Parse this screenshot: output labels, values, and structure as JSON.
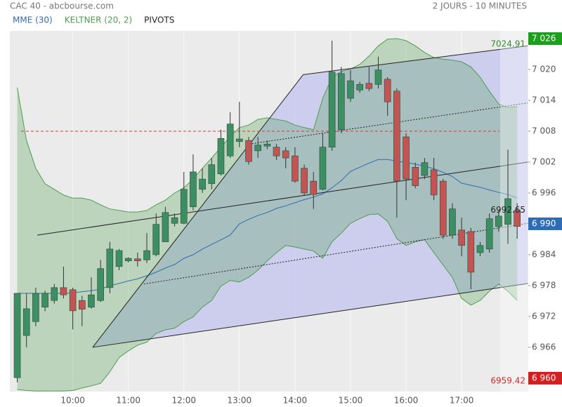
{
  "header": {
    "title": "CAC 40 - abcbourse.com",
    "period": "2 JOURS - 10 MINUTES"
  },
  "chart_data": {
    "type": "candlestick",
    "x": [
      540,
      550,
      560,
      570,
      580,
      590,
      600,
      610,
      620,
      630,
      640,
      650,
      660,
      670,
      680,
      690,
      700,
      710,
      720,
      730,
      740,
      750,
      760,
      770,
      780,
      790,
      800,
      810,
      820,
      830,
      840,
      850,
      860,
      870,
      880,
      890,
      900,
      910,
      920,
      930,
      940,
      950,
      960,
      970,
      980,
      990,
      1000,
      1010,
      1020,
      1030,
      1040,
      1050,
      1060,
      1070,
      1080
    ],
    "open": [
      6960.1,
      6968.3,
      6971.0,
      6973.8,
      6975.1,
      6977.6,
      6977.2,
      6975.1,
      6973.8,
      6975.1,
      6977.6,
      6981.7,
      6982.8,
      6983.2,
      6983.0,
      6984.0,
      6986.5,
      6990.1,
      6990.1,
      6993.3,
      6996.7,
      6997.8,
      6999.7,
      7003.2,
      7006.0,
      7006.2,
      7004.2,
      7005.1,
      7004.9,
      7004.2,
      7003.2,
      7000.8,
      6998.3,
      6996.7,
      7004.9,
      7008.3,
      7014.4,
      7016.0,
      7017.3,
      7017.1,
      7018.1,
      7015.8,
      7006.9,
      7001.0,
      6999.4,
      7000.5,
      6998.3,
      6987.8,
      6988.8,
      6988.5,
      6984.4,
      6985.1,
      6989.5,
      6989.9,
      6992.6
    ],
    "high": [
      6976.5,
      6976.5,
      6977.6,
      6977.0,
      6978.3,
      6981.7,
      6977.6,
      6976.0,
      6979.6,
      6983.0,
      6986.5,
      6985.1,
      6983.5,
      6984.4,
      6988.2,
      6992.0,
      6993.3,
      6992.0,
      7000.1,
      7003.5,
      7000.8,
      7002.8,
      7008.3,
      7011.7,
      7013.7,
      7006.9,
      7006.9,
      7006.2,
      7005.5,
      7004.9,
      7004.9,
      7001.5,
      7000.1,
      7007.6,
      7025.6,
      7020.5,
      7019.9,
      7017.6,
      7020.5,
      7022.5,
      7018.5,
      7016.3,
      7007.6,
      7001.9,
      7002.8,
      7002.8,
      6998.7,
      6994.0,
      6991.2,
      6989.2,
      6986.5,
      6992.0,
      6992.6,
      7004.4,
      6994.0
    ],
    "low": [
      6959.2,
      6966.0,
      6970.1,
      6973.0,
      6974.5,
      6975.5,
      6969.5,
      6970.1,
      6973.5,
      6974.8,
      6976.5,
      6981.0,
      6982.5,
      6981.7,
      6982.4,
      6983.7,
      6986.5,
      6989.5,
      6989.9,
      6992.6,
      6996.0,
      6996.7,
      6999.4,
      7002.8,
      7004.9,
      7001.5,
      7002.8,
      7004.5,
      7002.4,
      7000.8,
      6998.0,
      6995.6,
      6992.9,
      6996.5,
      7004.2,
      7007.6,
      7013.7,
      7015.5,
      7015.8,
      7016.3,
      7011.0,
      6991.2,
      6994.6,
      6996.9,
      6998.7,
      6994.6,
      6987.1,
      6987.1,
      6983.7,
      6977.3,
      6983.7,
      6984.4,
      6988.5,
      6986.1,
      6987.1
    ],
    "close": [
      6976.5,
      6973.5,
      6976.5,
      6976.5,
      6977.6,
      6976.2,
      6973.1,
      6973.4,
      6976.2,
      6981.3,
      6985.1,
      6984.8,
      6983.3,
      6982.8,
      6984.8,
      6989.9,
      6992.2,
      6991.2,
      6996.7,
      7000.1,
      6998.7,
      7001.5,
      7006.6,
      7009.4,
      7006.5,
      7002.1,
      7005.3,
      7005.5,
      7003.2,
      7002.8,
      6998.3,
      6996.0,
      6995.7,
      7004.9,
      7019.5,
      7019.2,
      7017.8,
      7017.1,
      7016.3,
      7019.9,
      7013.7,
      6998.3,
      6998.7,
      6997.4,
      7001.9,
      6995.6,
      6987.8,
      6992.9,
      6985.8,
      6980.6,
      6985.8,
      6991.0,
      6991.5,
      6994.9,
      6989.5
    ],
    "up_color": "#3d8f63",
    "down_color": "#c25454",
    "series": [
      {
        "name": "MME (30)",
        "color": "#2e6db4",
        "values": [
          6976.5,
          6976.5,
          6976.5,
          6976.5,
          6976.5,
          6976.5,
          6976.6,
          6976.8,
          6977.0,
          6977.3,
          6978.0,
          6978.4,
          6978.9,
          6979.3,
          6979.9,
          6980.6,
          6981.4,
          6982.1,
          6983.3,
          6984.0,
          6985.1,
          6986.0,
          6986.9,
          6987.8,
          6990.0,
          6990.9,
          6991.6,
          6992.2,
          6993.0,
          6993.5,
          6994.1,
          6994.7,
          6995.2,
          6995.8,
          6997.0,
          6998.4,
          7000.2,
          7001.0,
          7001.8,
          7002.5,
          7002.5,
          7002.2,
          7001.9,
          7001.6,
          7001.2,
          7000.7,
          7000.0,
          6999.2,
          6997.9,
          6997.5,
          6997.1,
          6996.6,
          6996.1,
          6995.7,
          6995.0
        ]
      },
      {
        "name": "KELTNER (20, 2)",
        "color": "#4e9e4e",
        "upper": [
          7016.5,
          7006.2,
          7000.8,
          6997.8,
          6996.7,
          6995.6,
          6995.0,
          6995.0,
          6994.6,
          6993.7,
          6992.9,
          6992.6,
          6992.3,
          6992.3,
          6992.6,
          6993.7,
          6994.6,
          6996.0,
          6997.0,
          6998.7,
          7000.8,
          7002.8,
          7004.9,
          7006.9,
          7008.7,
          7009.2,
          7010.3,
          7010.6,
          7010.3,
          7010.0,
          7009.2,
          7008.7,
          7008.3,
          7014.4,
          7018.5,
          7019.6,
          7020.1,
          7021.0,
          7022.6,
          7024.6,
          7025.9,
          7026.0,
          7025.6,
          7024.6,
          7023.3,
          7022.3,
          7022.0,
          7021.8,
          7021.5,
          7020.5,
          7018.5,
          7015.8,
          7013.3,
          7012.6,
          7012.8
        ],
        "lower": [
          6957.8,
          6957.6,
          6957.5,
          6957.5,
          6957.5,
          6957.5,
          6957.6,
          6958.1,
          6958.5,
          6959.0,
          6961.2,
          6964.0,
          6965.3,
          6966.4,
          6967.0,
          6968.7,
          6969.4,
          6969.7,
          6971.0,
          6971.9,
          6973.8,
          6975.1,
          6977.9,
          6979.0,
          6978.7,
          6979.6,
          6981.0,
          6982.8,
          6984.4,
          6985.8,
          6985.5,
          6985.1,
          6984.7,
          6983.3,
          6986.5,
          6988.2,
          6990.1,
          6991.0,
          6991.8,
          6991.9,
          6990.5,
          6987.1,
          6985.8,
          6986.5,
          6986.9,
          6984.4,
          6982.0,
          6979.6,
          6975.5,
          6974.2,
          6975.1,
          6976.9,
          6978.3,
          6976.9,
          6975.1
        ]
      },
      {
        "name": "PIVOTS",
        "color": "#222222",
        "fill": "#c8c8ef",
        "lines": [
          {
            "x": [
              621.5,
              848.9
            ],
            "y": [
              6966.0,
              7019.0
            ],
            "style": "solid"
          },
          {
            "x": [
              848.9,
              1091.5
            ],
            "y": [
              7019.0,
              7024.6
            ],
            "style": "solid"
          },
          {
            "x": [
              621.5,
              1091.5
            ],
            "y": [
              6966.0,
              6978.4
            ],
            "style": "solid"
          },
          {
            "x": [
              561.6,
              1091.5
            ],
            "y": [
              6987.8,
              7002.0
            ],
            "style": "solid"
          },
          {
            "x": [
              790.5,
              1091.5
            ],
            "y": [
              7005.5,
              7013.5
            ],
            "style": "dotted"
          },
          {
            "x": [
              676.8,
              1091.5
            ],
            "y": [
              6978.3,
              6990.1
            ],
            "style": "dotted"
          },
          {
            "x": [
              544.1,
              1061.2
            ],
            "y": [
              7008.0,
              7008.0
            ],
            "style": "dashed",
            "color": "#d23a3a"
          }
        ]
      }
    ],
    "xlim": [
      532,
      1092
    ],
    "ylim": [
      6957.4,
      7027.5
    ],
    "xticks": [
      {
        "value": 600,
        "label": "10:00"
      },
      {
        "value": 660,
        "label": "11:00"
      },
      {
        "value": 720,
        "label": "12:00"
      },
      {
        "value": 780,
        "label": "13:00"
      },
      {
        "value": 840,
        "label": "14:00"
      },
      {
        "value": 900,
        "label": "15:00"
      },
      {
        "value": 960,
        "label": "16:00"
      },
      {
        "value": 1020,
        "label": "17:00"
      }
    ],
    "yticks": [
      {
        "value": 6966,
        "label": "6 966"
      },
      {
        "value": 6972,
        "label": "6 972"
      },
      {
        "value": 6978,
        "label": "6 978"
      },
      {
        "value": 6984,
        "label": "6 984"
      },
      {
        "value": 6996,
        "label": "6 996"
      },
      {
        "value": 7002,
        "label": "7 002"
      },
      {
        "value": 7008,
        "label": "7 008"
      },
      {
        "value": 7014,
        "label": "7 014"
      },
      {
        "value": 7020,
        "label": "7 020"
      }
    ],
    "grid": true,
    "annotations": [
      {
        "value": 7024.91,
        "label": "7024.91",
        "color": "#2e8b2e"
      },
      {
        "value": 6992.65,
        "label": "6992.65",
        "color": "#222222"
      },
      {
        "value": 6959.42,
        "label": "6959.42",
        "color": "#d22b2b"
      }
    ],
    "price_tags": [
      {
        "value": 7026,
        "label": "7 026",
        "color": "#1e9e1e"
      },
      {
        "value": 6990,
        "label": "6 990",
        "color": "#2e6db4"
      },
      {
        "value": 6960,
        "label": "6 960",
        "color": "#d21f1f"
      }
    ]
  }
}
